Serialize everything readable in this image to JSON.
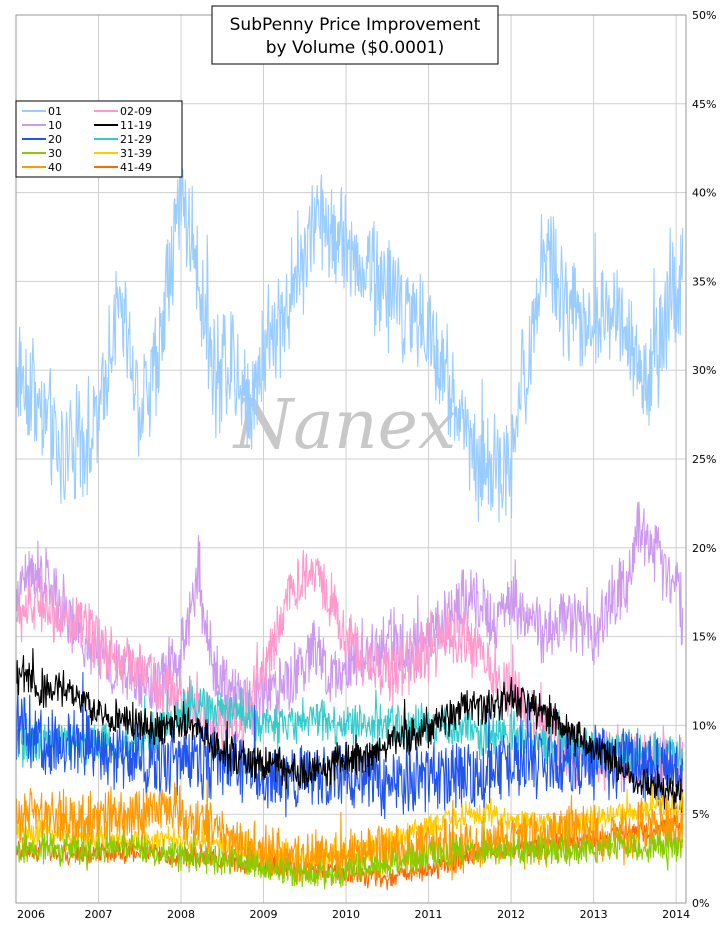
{
  "chart_data": {
    "type": "line",
    "title_line1": "SubPenny Price Improvement",
    "title_line2": "by Volume ($0.0001)",
    "watermark": "Nanex",
    "xlabel": "",
    "ylabel": "",
    "x_range": [
      2006.0,
      2014.12
    ],
    "ylim": [
      0,
      50
    ],
    "x_ticks": [
      "2006",
      "2007",
      "2008",
      "2009",
      "2010",
      "2011",
      "2012",
      "2013",
      "2014"
    ],
    "y_ticks": [
      "0%",
      "5%",
      "10%",
      "15%",
      "20%",
      "25%",
      "30%",
      "35%",
      "40%",
      "45%",
      "50%"
    ],
    "grid": true,
    "legend_position": "top-left",
    "series": [
      {
        "name": "01",
        "color": "#99ccff",
        "noise": 2.6,
        "x": [
          2006.0,
          2006.2,
          2006.4,
          2006.55,
          2006.75,
          2007.0,
          2007.2,
          2007.35,
          2007.5,
          2007.7,
          2007.85,
          2008.0,
          2008.15,
          2008.3,
          2008.45,
          2008.6,
          2008.8,
          2009.0,
          2009.2,
          2009.4,
          2009.55,
          2009.7,
          2009.85,
          2010.0,
          2010.2,
          2010.4,
          2010.6,
          2010.8,
          2011.0,
          2011.2,
          2011.35,
          2011.45,
          2011.55,
          2011.7,
          2011.85,
          2012.0,
          2012.1,
          2012.2,
          2012.35,
          2012.45,
          2012.6,
          2012.75,
          2012.9,
          2013.05,
          2013.2,
          2013.35,
          2013.5,
          2013.65,
          2013.8,
          2013.95,
          2014.08
        ],
        "y": [
          30,
          29,
          27,
          25,
          26,
          27,
          33,
          32,
          28,
          30,
          35,
          40,
          37,
          33,
          29,
          31,
          28,
          31,
          33,
          35,
          37,
          39,
          38,
          37,
          36,
          35,
          34,
          33,
          32,
          30,
          28,
          27,
          24,
          25,
          24,
          25,
          29,
          30,
          35,
          37,
          34,
          33,
          32,
          33,
          34,
          33,
          31,
          29,
          31,
          34,
          35
        ]
      },
      {
        "name": "10",
        "color": "#cc99ee",
        "noise": 1.5,
        "x": [
          2006.0,
          2006.2,
          2006.4,
          2006.6,
          2006.8,
          2007.0,
          2007.2,
          2007.4,
          2007.6,
          2007.8,
          2008.0,
          2008.2,
          2008.4,
          2008.6,
          2008.8,
          2009.0,
          2009.2,
          2009.4,
          2009.6,
          2009.8,
          2010.0,
          2010.2,
          2010.4,
          2010.6,
          2010.8,
          2011.0,
          2011.2,
          2011.4,
          2011.6,
          2011.8,
          2012.0,
          2012.2,
          2012.4,
          2012.6,
          2012.8,
          2013.0,
          2013.2,
          2013.4,
          2013.55,
          2013.7,
          2013.85,
          2014.0,
          2014.08
        ],
        "y": [
          17,
          19,
          18,
          16,
          15,
          14,
          13,
          13,
          12,
          13,
          14,
          18,
          13,
          12,
          11,
          12,
          12,
          13,
          14,
          13,
          13,
          14,
          14,
          15,
          14,
          15,
          16,
          17,
          17,
          16,
          17,
          16,
          15,
          16,
          16,
          15,
          17,
          18,
          21,
          20,
          19,
          18,
          16
        ]
      },
      {
        "name": "20",
        "color": "#2255ee",
        "noise": 1.7,
        "x": [
          2006.0,
          2006.3,
          2006.6,
          2006.9,
          2007.2,
          2007.5,
          2007.8,
          2008.1,
          2008.4,
          2008.7,
          2009.0,
          2009.3,
          2009.6,
          2009.9,
          2010.2,
          2010.5,
          2010.8,
          2011.1,
          2011.4,
          2011.7,
          2012.0,
          2012.3,
          2012.6,
          2012.9,
          2013.2,
          2013.5,
          2013.8,
          2014.08
        ],
        "y": [
          10,
          9,
          9,
          9,
          8,
          8,
          8,
          8,
          8,
          8,
          7,
          7,
          7,
          7,
          7,
          7,
          7,
          7,
          7,
          7,
          8,
          8,
          8,
          8,
          8,
          8,
          7.5,
          7.5
        ]
      },
      {
        "name": "30",
        "color": "#88cc00",
        "noise": 0.7,
        "x": [
          2006.0,
          2006.3,
          2006.6,
          2006.9,
          2007.2,
          2007.5,
          2007.8,
          2008.1,
          2008.4,
          2008.7,
          2009.0,
          2009.3,
          2009.6,
          2009.9,
          2010.2,
          2010.5,
          2010.8,
          2011.1,
          2011.4,
          2011.7,
          2012.0,
          2012.3,
          2012.6,
          2012.9,
          2013.2,
          2013.5,
          2013.8,
          2014.08
        ],
        "y": [
          3,
          3,
          3,
          3,
          3,
          3,
          2.8,
          2.6,
          2.5,
          2.4,
          2.2,
          1.8,
          1.5,
          1.5,
          2,
          2.2,
          2.5,
          2.7,
          2.8,
          3,
          3,
          3,
          3,
          3,
          3.2,
          3.2,
          3.2,
          3.2
        ]
      },
      {
        "name": "40",
        "color": "#ff9900",
        "noise": 1.3,
        "x": [
          2006.0,
          2006.3,
          2006.6,
          2006.9,
          2007.2,
          2007.5,
          2007.8,
          2008.1,
          2008.4,
          2008.7,
          2009.0,
          2009.3,
          2009.6,
          2009.9,
          2010.2,
          2010.5,
          2010.8,
          2011.1,
          2011.4,
          2011.7,
          2012.0,
          2012.3,
          2012.6,
          2012.9,
          2013.2,
          2013.5,
          2013.8,
          2014.08
        ],
        "y": [
          5,
          5,
          4.5,
          4.5,
          5,
          5,
          5.5,
          5,
          4,
          3.5,
          3,
          2.5,
          2.5,
          2.5,
          2.8,
          3,
          3,
          3,
          3,
          3.2,
          3.5,
          3.5,
          3.8,
          4,
          4,
          4.2,
          4.5,
          4.5
        ]
      },
      {
        "name": "02-09",
        "color": "#ff99cc",
        "noise": 1.4,
        "x": [
          2006.0,
          2006.3,
          2006.6,
          2006.9,
          2007.2,
          2007.5,
          2007.8,
          2008.1,
          2008.4,
          2008.7,
          2009.0,
          2009.2,
          2009.4,
          2009.6,
          2009.8,
          2010.0,
          2010.2,
          2010.4,
          2010.6,
          2010.8,
          2011.0,
          2011.2,
          2011.4,
          2011.6,
          2011.8,
          2012.0,
          2012.2,
          2012.4,
          2012.6,
          2012.8,
          2013.0,
          2013.2,
          2013.4,
          2013.6,
          2013.8,
          2014.08
        ],
        "y": [
          16,
          17,
          16,
          15,
          14,
          13,
          12,
          11,
          10,
          10,
          13,
          16,
          18,
          19,
          17,
          15,
          14,
          13,
          13,
          14,
          14,
          15,
          15,
          14,
          13,
          12,
          11,
          10,
          9,
          8,
          8,
          8,
          8,
          8,
          8,
          8
        ]
      },
      {
        "name": "11-19",
        "color": "#000000",
        "noise": 0.9,
        "x": [
          2006.0,
          2006.3,
          2006.6,
          2006.9,
          2007.2,
          2007.5,
          2007.8,
          2008.1,
          2008.4,
          2008.7,
          2009.0,
          2009.3,
          2009.6,
          2009.9,
          2010.2,
          2010.5,
          2010.8,
          2011.1,
          2011.4,
          2011.7,
          2012.0,
          2012.3,
          2012.6,
          2012.9,
          2013.2,
          2013.5,
          2013.8,
          2014.08
        ],
        "y": [
          13,
          12,
          12,
          11,
          10.5,
          10,
          10,
          10,
          9,
          8,
          8,
          7.5,
          7.5,
          8,
          8,
          9,
          9.5,
          10,
          11,
          11,
          11.5,
          11,
          10,
          9,
          8,
          7,
          6.5,
          6
        ]
      },
      {
        "name": "21-29",
        "color": "#33cccc",
        "noise": 1.0,
        "x": [
          2006.0,
          2006.3,
          2006.6,
          2006.9,
          2007.2,
          2007.5,
          2007.8,
          2008.1,
          2008.4,
          2008.7,
          2009.0,
          2009.3,
          2009.6,
          2009.9,
          2010.2,
          2010.5,
          2010.8,
          2011.1,
          2011.4,
          2011.7,
          2012.0,
          2012.3,
          2012.6,
          2012.9,
          2013.2,
          2013.5,
          2013.8,
          2014.08
        ],
        "y": [
          9,
          9,
          9,
          9,
          9,
          9,
          10,
          11,
          11,
          11,
          10,
          10,
          10.5,
          10,
          10,
          10,
          10,
          10,
          10,
          9.5,
          9.5,
          9,
          9,
          8.5,
          8.5,
          8.5,
          8.5,
          8.5
        ]
      },
      {
        "name": "31-39",
        "color": "#ffcc00",
        "noise": 0.6,
        "x": [
          2006.0,
          2006.3,
          2006.6,
          2006.9,
          2007.2,
          2007.5,
          2007.8,
          2008.1,
          2008.4,
          2008.7,
          2009.0,
          2009.3,
          2009.6,
          2009.9,
          2010.2,
          2010.5,
          2010.8,
          2011.1,
          2011.4,
          2011.7,
          2012.0,
          2012.3,
          2012.6,
          2012.9,
          2013.2,
          2013.5,
          2013.8,
          2014.08
        ],
        "y": [
          4,
          4,
          3.8,
          3.6,
          3.5,
          3.5,
          3.5,
          3.4,
          3.2,
          3,
          2.8,
          2.6,
          2.5,
          2.5,
          3,
          3.5,
          4,
          4.5,
          5,
          5,
          4.5,
          4.5,
          4.5,
          4.5,
          5,
          5,
          5.5,
          5.5
        ]
      },
      {
        "name": "41-49",
        "color": "#ff6600",
        "noise": 0.5,
        "x": [
          2006.0,
          2006.3,
          2006.6,
          2006.9,
          2007.2,
          2007.5,
          2007.8,
          2008.1,
          2008.4,
          2008.7,
          2009.0,
          2009.3,
          2009.6,
          2009.9,
          2010.2,
          2010.5,
          2010.8,
          2011.1,
          2011.4,
          2011.7,
          2012.0,
          2012.3,
          2012.6,
          2012.9,
          2013.2,
          2013.5,
          2013.8,
          2014.08
        ],
        "y": [
          3,
          3,
          2.8,
          2.8,
          2.8,
          2.8,
          2.7,
          2.6,
          2.5,
          2.3,
          2.2,
          2,
          1.8,
          1.8,
          1.5,
          1.4,
          1.6,
          2,
          2.5,
          3,
          3,
          3.2,
          3.5,
          3.5,
          3.8,
          4,
          4.2,
          4.5
        ]
      }
    ]
  }
}
